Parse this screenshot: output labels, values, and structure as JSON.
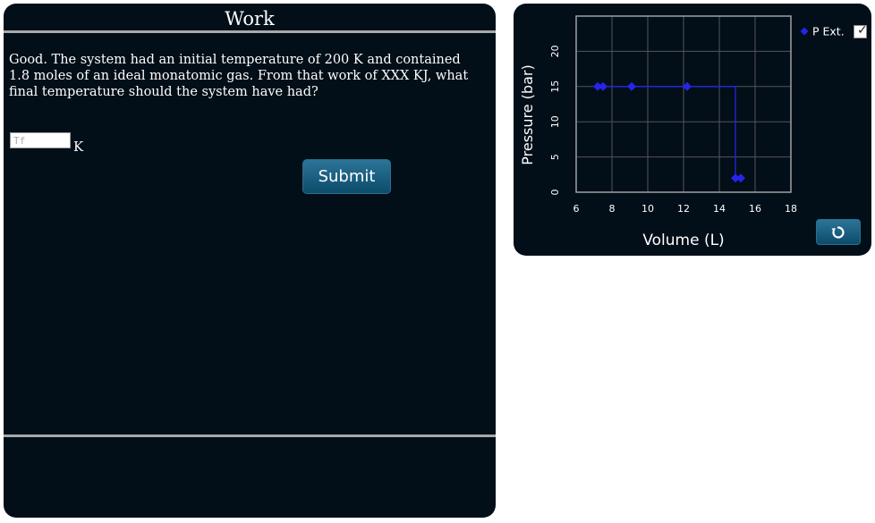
{
  "work_panel": {
    "title": "Work",
    "question": "Good. The system had an initial temperature of 200 K and contained 1.8 moles of an ideal monatomic gas. From that work of XXX KJ, what final temperature should the system have had?",
    "tf_input": {
      "value": "",
      "placeholder": "Tf"
    },
    "unit_label": "K",
    "submit_label": "Submit"
  },
  "chart_panel": {
    "legend_checkbox_checked": true,
    "reset_icon": "refresh-icon",
    "colors": {
      "series": "#2525e8",
      "grid": "#555555",
      "axis": "#a0a0a0",
      "text": "#ffffff"
    }
  },
  "chart_data": {
    "type": "scatter",
    "xlabel": "Volume (L)",
    "ylabel": "Pressure (bar)",
    "xlim": [
      6,
      18
    ],
    "ylim": [
      0,
      25
    ],
    "x_ticks": [
      6,
      8,
      10,
      12,
      14,
      16,
      18
    ],
    "y_ticks": [
      0,
      5,
      10,
      15,
      20
    ],
    "grid": true,
    "legend_position": "top-right",
    "series": [
      {
        "name": "P Ext.",
        "x": [
          7.2,
          7.5,
          9.1,
          12.2,
          14.9,
          15.2
        ],
        "y": [
          15,
          15,
          15,
          15,
          2,
          2
        ]
      }
    ],
    "step_path": {
      "x": [
        7.2,
        14.9,
        14.9,
        15.2
      ],
      "y": [
        15,
        15,
        2,
        2
      ]
    }
  }
}
